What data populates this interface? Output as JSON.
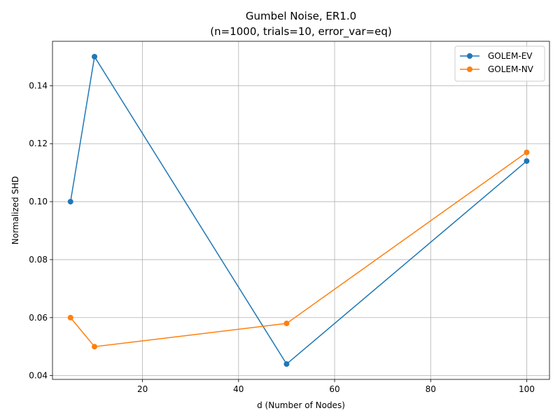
{
  "chart_data": {
    "type": "line",
    "title_line1": "Gumbel Noise, ER1.0",
    "title_line2": "(n=1000, trials=10, error_var=eq)",
    "xlabel": "d (Number of Nodes)",
    "ylabel": "Normalized SHD",
    "xlim": [
      1.25,
      104.75
    ],
    "ylim": [
      0.0387,
      0.1553
    ],
    "xticks": [
      20,
      40,
      60,
      80,
      100
    ],
    "yticks": [
      0.04,
      0.06,
      0.08,
      0.1,
      0.12,
      0.14
    ],
    "ytick_labels": [
      "0.04",
      "0.06",
      "0.08",
      "0.10",
      "0.12",
      "0.14"
    ],
    "grid": true,
    "legend_position": "top-right",
    "x": [
      5,
      10,
      50,
      100
    ],
    "series": [
      {
        "name": "GOLEM-EV",
        "color": "#1f77b4",
        "values": [
          0.1,
          0.15,
          0.044,
          0.114
        ]
      },
      {
        "name": "GOLEM-NV",
        "color": "#ff7f0e",
        "values": [
          0.06,
          0.05,
          0.058,
          0.117
        ]
      }
    ]
  }
}
